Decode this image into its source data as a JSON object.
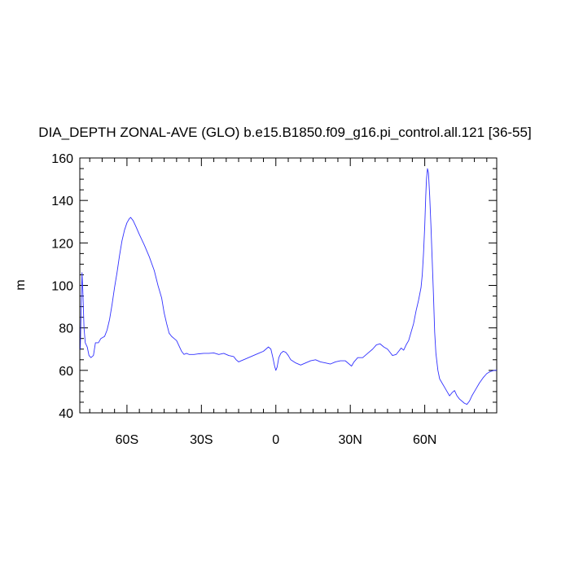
{
  "chart_data": {
    "type": "line",
    "title": "DIA_DEPTH ZONAL-AVE (GLO) b.e15.B1850.f09_g16.pi_control.all.121 [36-55]",
    "ylabel": "m",
    "xlabel": "",
    "xlim": [
      -79,
      89
    ],
    "ylim": [
      40,
      160
    ],
    "yticks": [
      40,
      60,
      80,
      100,
      120,
      140,
      160
    ],
    "xticks": [
      {
        "value": -60,
        "label": "60S"
      },
      {
        "value": -30,
        "label": "30S"
      },
      {
        "value": 0,
        "label": "0"
      },
      {
        "value": 30,
        "label": "30N"
      },
      {
        "value": 60,
        "label": "60N"
      }
    ],
    "series": [
      {
        "color": "#3030ff",
        "points": [
          [
            -78.8,
            70
          ],
          [
            -78.4,
            92
          ],
          [
            -78.1,
            106
          ],
          [
            -77.8,
            98
          ],
          [
            -77.3,
            80
          ],
          [
            -76.8,
            73
          ],
          [
            -76,
            71
          ],
          [
            -75.3,
            67
          ],
          [
            -74.5,
            66
          ],
          [
            -73.5,
            67
          ],
          [
            -72.7,
            73
          ],
          [
            -71.5,
            73
          ],
          [
            -70.5,
            75
          ],
          [
            -69,
            76
          ],
          [
            -68,
            79
          ],
          [
            -67,
            84
          ],
          [
            -66,
            91
          ],
          [
            -65,
            99
          ],
          [
            -64,
            106
          ],
          [
            -63,
            114
          ],
          [
            -62,
            121
          ],
          [
            -61,
            126
          ],
          [
            -60,
            129.5
          ],
          [
            -59,
            131.5
          ],
          [
            -58.5,
            132
          ],
          [
            -57.5,
            130.5
          ],
          [
            -56.5,
            128
          ],
          [
            -55,
            124
          ],
          [
            -53,
            119
          ],
          [
            -51,
            113.5
          ],
          [
            -49,
            107
          ],
          [
            -47.5,
            100
          ],
          [
            -46,
            94
          ],
          [
            -45,
            87
          ],
          [
            -44,
            82
          ],
          [
            -43,
            77.5
          ],
          [
            -42,
            76
          ],
          [
            -41,
            75
          ],
          [
            -40,
            74
          ],
          [
            -39,
            71.5
          ],
          [
            -38,
            69
          ],
          [
            -37,
            67.5
          ],
          [
            -36,
            68
          ],
          [
            -35,
            67.5
          ],
          [
            -33,
            67.5
          ],
          [
            -31,
            67.8
          ],
          [
            -29,
            68
          ],
          [
            -27,
            68
          ],
          [
            -25,
            68.2
          ],
          [
            -23,
            67.5
          ],
          [
            -21,
            68
          ],
          [
            -19,
            67
          ],
          [
            -17,
            66.5
          ],
          [
            -16,
            65
          ],
          [
            -15,
            64
          ],
          [
            -14,
            64.5
          ],
          [
            -13,
            65
          ],
          [
            -11,
            66
          ],
          [
            -9,
            67
          ],
          [
            -7,
            68
          ],
          [
            -5,
            69
          ],
          [
            -4,
            70
          ],
          [
            -3,
            71
          ],
          [
            -2,
            70
          ],
          [
            -1.2,
            66
          ],
          [
            -0.5,
            62
          ],
          [
            0,
            60
          ],
          [
            0.5,
            61.5
          ],
          [
            1.2,
            66
          ],
          [
            2,
            68
          ],
          [
            3,
            69
          ],
          [
            4,
            68.5
          ],
          [
            5,
            67
          ],
          [
            6,
            65
          ],
          [
            8,
            63.5
          ],
          [
            10,
            62.5
          ],
          [
            12,
            63.5
          ],
          [
            14,
            64.5
          ],
          [
            16,
            65
          ],
          [
            18,
            64
          ],
          [
            20,
            63.5
          ],
          [
            22,
            63
          ],
          [
            24,
            64
          ],
          [
            26,
            64.5
          ],
          [
            28,
            64.5
          ],
          [
            29.5,
            63
          ],
          [
            30.5,
            62
          ],
          [
            31.5,
            64
          ],
          [
            33,
            66
          ],
          [
            35,
            66
          ],
          [
            37,
            68
          ],
          [
            39,
            70
          ],
          [
            40.5,
            72
          ],
          [
            42,
            72.5
          ],
          [
            43.5,
            71
          ],
          [
            45,
            70
          ],
          [
            46,
            68.5
          ],
          [
            47,
            67
          ],
          [
            48.5,
            67.5
          ],
          [
            49.5,
            69
          ],
          [
            50.5,
            70.5
          ],
          [
            51.5,
            69.5
          ],
          [
            52.5,
            72
          ],
          [
            53.5,
            74
          ],
          [
            54.5,
            78
          ],
          [
            55.5,
            82
          ],
          [
            56.5,
            88
          ],
          [
            57.5,
            93
          ],
          [
            58.5,
            99
          ],
          [
            59,
            105
          ],
          [
            59.5,
            115
          ],
          [
            60,
            128
          ],
          [
            60.4,
            142
          ],
          [
            60.7,
            150
          ],
          [
            61.1,
            155
          ],
          [
            61.5,
            153
          ],
          [
            62,
            142
          ],
          [
            62.5,
            128
          ],
          [
            63,
            112
          ],
          [
            63.5,
            96
          ],
          [
            64,
            78
          ],
          [
            64.5,
            68
          ],
          [
            65.3,
            60
          ],
          [
            66,
            56
          ],
          [
            67,
            54
          ],
          [
            68,
            52
          ],
          [
            69,
            50
          ],
          [
            70,
            48
          ],
          [
            71,
            49.5
          ],
          [
            72,
            50.5
          ],
          [
            73,
            48
          ],
          [
            74,
            46.5
          ],
          [
            75,
            45.5
          ],
          [
            76,
            44.5
          ],
          [
            77,
            44
          ],
          [
            78,
            45.5
          ],
          [
            79,
            48
          ],
          [
            80.5,
            51
          ],
          [
            82,
            54
          ],
          [
            83.5,
            56.5
          ],
          [
            85,
            58.5
          ],
          [
            86.5,
            59.5
          ],
          [
            88,
            60
          ],
          [
            89,
            60
          ]
        ]
      }
    ]
  }
}
